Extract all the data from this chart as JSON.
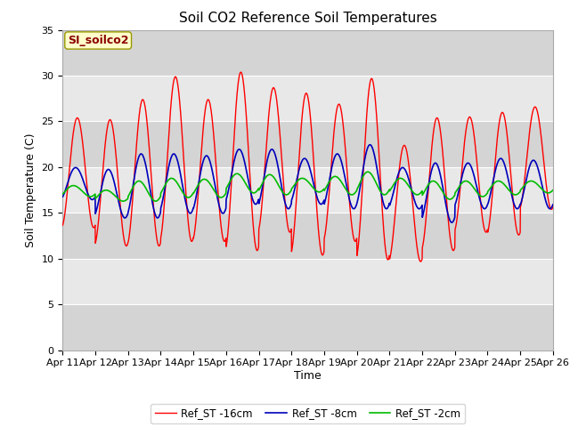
{
  "title": "Soil CO2 Reference Soil Temperatures",
  "xlabel": "Time",
  "ylabel": "Soil Temperature (C)",
  "ylim": [
    0,
    35
  ],
  "yticks": [
    0,
    5,
    10,
    15,
    20,
    25,
    30,
    35
  ],
  "x_labels": [
    "Apr 11",
    "Apr 12",
    "Apr 13",
    "Apr 14",
    "Apr 15",
    "Apr 16",
    "Apr 17",
    "Apr 18",
    "Apr 19",
    "Apr 20",
    "Apr 21",
    "Apr 22",
    "Apr 23",
    "Apr 24",
    "Apr 25",
    "Apr 26"
  ],
  "site_label": "SI_soilco2",
  "legend_labels": [
    "Ref_ST -16cm",
    "Ref_ST -8cm",
    "Ref_ST -2cm"
  ],
  "line_colors": [
    "#ff0000",
    "#0000bb",
    "#00bb00"
  ],
  "fig_bg_color": "#ffffff",
  "plot_bg_color": "#e8e8e8",
  "band_light": "#e8e8e8",
  "band_dark": "#d4d4d4",
  "title_fontsize": 11,
  "axis_label_fontsize": 9,
  "tick_fontsize": 8
}
